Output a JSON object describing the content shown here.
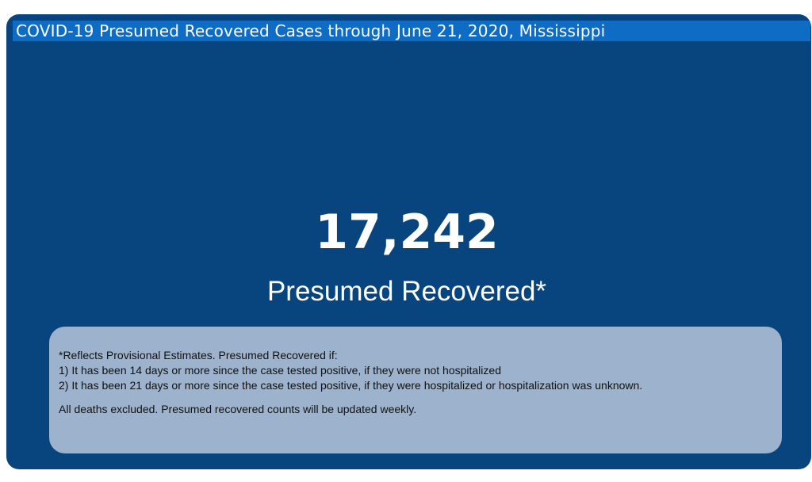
{
  "title": "COVID-19 Presumed Recovered Cases through June 21, 2020, Mississippi",
  "kpi": {
    "value": "17,242",
    "label": "Presumed Recovered*"
  },
  "notes": {
    "lines": [
      "*Reflects Provisional Estimates. Presumed Recovered if:",
      "1) It has been 14 days or more since the case tested positive, if they were not hospitalized",
      "2) It has been 21 days or more since the case tested positive, if they were hospitalized or hospitalization was unknown."
    ],
    "footer": "All deaths excluded. Presumed recovered counts will be updated weekly."
  },
  "colors": {
    "card_background": "#08457f",
    "title_bar": "#0e6cc4",
    "note_box": "#9db2cd",
    "text_light": "#ffffff"
  }
}
